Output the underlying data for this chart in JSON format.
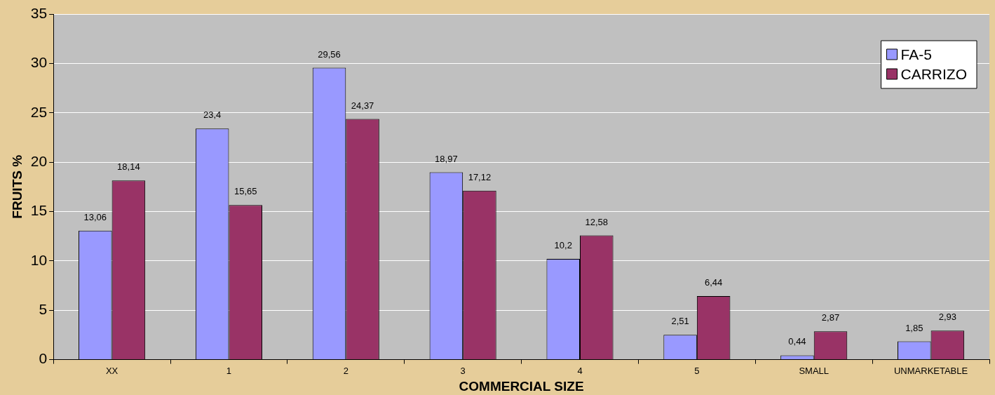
{
  "chart_data": {
    "type": "bar",
    "xlabel": "COMMERCIAL SIZE",
    "ylabel": "FRUITS %",
    "categories": [
      "XX",
      "1",
      "2",
      "3",
      "4",
      "5",
      "SMALL",
      "UNMARKETABLE"
    ],
    "series": [
      {
        "name": "FA-5",
        "color": "#9999ff",
        "values": [
          13.06,
          23.4,
          29.56,
          18.97,
          10.2,
          2.51,
          0.44,
          1.85
        ],
        "value_labels": [
          "13,06",
          "23,4",
          "29,56",
          "18,97",
          "10,2",
          "2,51",
          "0,44",
          "1,85"
        ]
      },
      {
        "name": "CARRIZO",
        "color": "#993366",
        "values": [
          18.14,
          15.65,
          24.37,
          17.12,
          12.58,
          6.44,
          2.87,
          2.93
        ],
        "value_labels": [
          "18,14",
          "15,65",
          "24,37",
          "17,12",
          "12,58",
          "6,44",
          "2,87",
          "2,93"
        ]
      }
    ],
    "ylim": [
      0,
      35
    ],
    "yticks": [
      0,
      5,
      10,
      15,
      20,
      25,
      30,
      35
    ],
    "grid": "y",
    "legend": "top right"
  }
}
